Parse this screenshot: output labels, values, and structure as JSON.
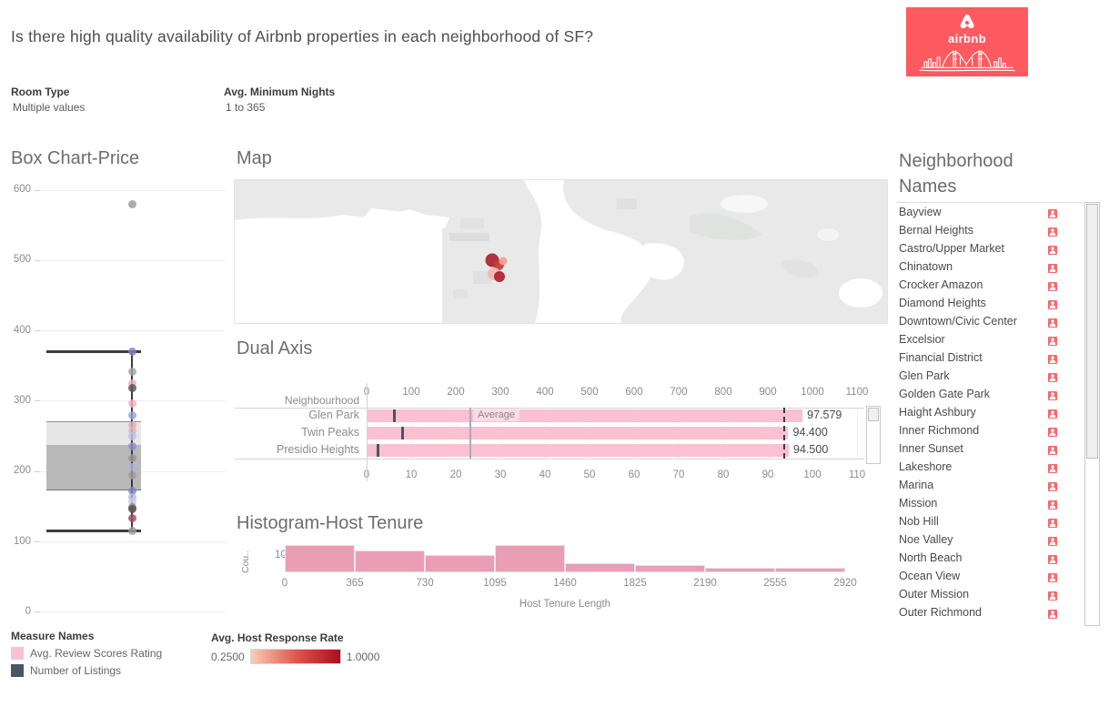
{
  "page": {
    "title": "Is there high quality availability of Airbnb properties in each neighborhood of SF?"
  },
  "logo": {
    "text": "airbnb",
    "bg": "#ff5a5f"
  },
  "filters": [
    {
      "label": "Room Type",
      "value": "Multiple values"
    },
    {
      "label": "Avg. Minimum Nights",
      "value": "1 to 365"
    }
  ],
  "sections": {
    "box": "Box Chart-Price",
    "map": "Map",
    "dual": "Dual Axis",
    "hist": "Histogram-Host Tenure",
    "neighborhoods": "Neighborhood Names"
  },
  "chart_data": [
    {
      "type": "box",
      "title": "Box Chart-Price",
      "ylim": [
        0,
        620
      ],
      "yticks": [
        600,
        500,
        400,
        300,
        200,
        100,
        0
      ],
      "whisker_low": 116,
      "q1": 174,
      "median": 238,
      "q3": 272,
      "whisker_high": 371,
      "points": [
        {
          "v": 580,
          "c": "#a39797"
        },
        {
          "v": 371,
          "c": "#7b83c3"
        },
        {
          "v": 342,
          "c": "#aaa1a1"
        },
        {
          "v": 325,
          "c": "#f0a9bd"
        },
        {
          "v": 318,
          "c": "#5a5351"
        },
        {
          "v": 297,
          "c": "#f4afc3"
        },
        {
          "v": 280,
          "c": "#98a1dd"
        },
        {
          "v": 265,
          "c": "#e8a9bf"
        },
        {
          "v": 258,
          "c": "#d9b4c5"
        },
        {
          "v": 250,
          "c": "#bcc0e5"
        },
        {
          "v": 236,
          "c": "#8991cb"
        },
        {
          "v": 219,
          "c": "#9a9292"
        },
        {
          "v": 206,
          "c": "#adb3dc"
        },
        {
          "v": 194,
          "c": "#a39b9b"
        },
        {
          "v": 172,
          "c": "#7e86c4"
        },
        {
          "v": 163,
          "c": "#b5bae1"
        },
        {
          "v": 157,
          "c": "#c8cce9"
        },
        {
          "v": 149,
          "c": "#8b8585"
        },
        {
          "v": 146,
          "c": "#565050"
        },
        {
          "v": 134,
          "c": "#a74a5c"
        },
        {
          "v": 115,
          "c": "#a09898"
        }
      ]
    },
    {
      "type": "map",
      "title": "Map",
      "points": [
        {
          "x": 283,
          "y": 88,
          "r": 7.5,
          "c": "#ab2130"
        },
        {
          "x": 290,
          "y": 93,
          "r": 6,
          "c": "#c23a37"
        },
        {
          "x": 295,
          "y": 89,
          "r": 4.5,
          "c": "#ef9f93"
        },
        {
          "x": 285,
          "y": 103,
          "r": 7,
          "c": "#f3b4ac"
        },
        {
          "x": 291,
          "y": 106,
          "r": 6,
          "c": "#ac2030"
        }
      ]
    },
    {
      "type": "bar",
      "title": "Dual Axis",
      "orientation": "horizontal",
      "category_label": "Neighbourhood",
      "categories": [
        "Glen Park",
        "Twin Peaks",
        "Presidio Heights"
      ],
      "series": [
        {
          "name": "Avg. Review Scores Rating",
          "axis": "bottom",
          "color": "#fbc0d2",
          "values": [
            97.579,
            94.4,
            94.5
          ],
          "labels": [
            "97.579",
            "94.400",
            "94.500"
          ]
        },
        {
          "name": "Number of Listings",
          "axis": "top",
          "color": "#4b5563",
          "values": [
            62,
            80,
            25
          ]
        }
      ],
      "top_axis": {
        "min": 0,
        "max": 1100,
        "step": 100
      },
      "bottom_axis": {
        "min": 0,
        "max": 110,
        "step": 10
      },
      "reference_lines": [
        {
          "label": "Average",
          "axis": "top",
          "value": 233,
          "style": "solid"
        },
        {
          "axis": "bottom",
          "value": 93.7,
          "style": "dashed"
        }
      ]
    },
    {
      "type": "bar",
      "title": "Histogram-Host Tenure",
      "xlabel": "Host Tenure Length",
      "ylabel": "Cou..",
      "ytick": 10,
      "color": "#eb9db6",
      "bin_edges": [
        0,
        365,
        730,
        1095,
        1460,
        1825,
        2190,
        2555,
        2920
      ],
      "values": [
        16,
        13,
        10,
        16,
        5,
        4,
        2,
        2
      ]
    }
  ],
  "neighborhood_list": [
    "Bayview",
    "Bernal Heights",
    "Castro/Upper Market",
    "Chinatown",
    "Crocker Amazon",
    "Diamond Heights",
    "Downtown/Civic Center",
    "Excelsior",
    "Financial District",
    "Glen Park",
    "Golden Gate Park",
    "Haight Ashbury",
    "Inner Richmond",
    "Inner Sunset",
    "Lakeshore",
    "Marina",
    "Mission",
    "Nob Hill",
    "Noe Valley",
    "North Beach",
    "Ocean View",
    "Outer Mission",
    "Outer Richmond"
  ],
  "legends": {
    "measure_names": {
      "title": "Measure Names",
      "items": [
        {
          "label": "Avg. Review Scores Rating",
          "color": "#fbc0d2"
        },
        {
          "label": "Number of Listings",
          "color": "#4b5563"
        }
      ]
    },
    "host_response": {
      "title": "Avg. Host Response Rate",
      "min_label": "0.2500",
      "max_label": "1.0000",
      "gradient": [
        "#f9cdb6",
        "#e2574d",
        "#a80f1e"
      ]
    }
  }
}
